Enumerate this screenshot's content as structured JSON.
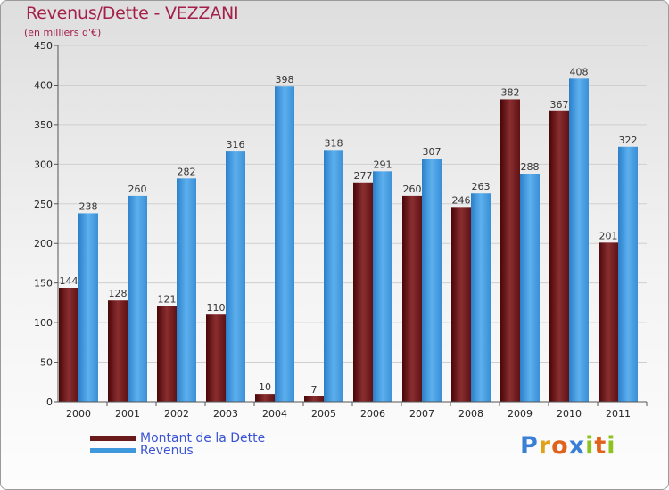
{
  "chart_data": {
    "type": "bar",
    "title": "Revenus/Dette - VEZZANI",
    "subtitle": "(en milliers d'€)",
    "categories": [
      "2000",
      "2001",
      "2002",
      "2003",
      "2004",
      "2005",
      "2006",
      "2007",
      "2008",
      "2009",
      "2010",
      "2011"
    ],
    "series": [
      {
        "name": "Montant de la Dette",
        "color": "#6b1a1c",
        "values": [
          144,
          128,
          121,
          110,
          10,
          7,
          277,
          260,
          246,
          382,
          367,
          201
        ]
      },
      {
        "name": "Revenus",
        "color": "#3f97dc",
        "values": [
          238,
          260,
          282,
          316,
          398,
          318,
          291,
          307,
          263,
          288,
          408,
          322
        ]
      }
    ],
    "ylim": [
      0,
      450
    ],
    "yticks": [
      "0",
      "50",
      "100",
      "150",
      "200",
      "250",
      "300",
      "350",
      "400",
      "450"
    ],
    "grid": true,
    "legend": "bottom-left"
  },
  "brand": {
    "letters": [
      "P",
      "r",
      "o",
      "x",
      "i",
      "t",
      "i"
    ],
    "colors": [
      "#3a7fd6",
      "#e0a21b",
      "#e0621b",
      "#3a7fd6",
      "#8dc21f",
      "#e0621b",
      "#8dc21f"
    ]
  }
}
